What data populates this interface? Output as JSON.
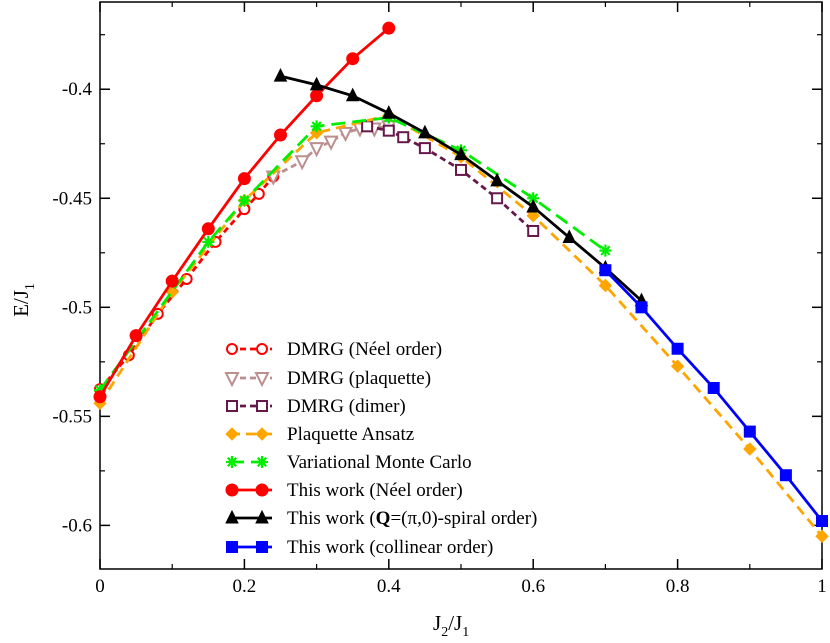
{
  "chart_data": {
    "type": "line",
    "title": "",
    "xlabel": "J2/J1",
    "ylabel": "E/J1",
    "xlim": [
      0,
      1
    ],
    "ylim": [
      -0.62,
      -0.36
    ],
    "x_ticks": [
      {
        "v": 0,
        "label": "0"
      },
      {
        "v": 0.2,
        "label": "0.2"
      },
      {
        "v": 0.4,
        "label": "0.4"
      },
      {
        "v": 0.6,
        "label": "0.6"
      },
      {
        "v": 0.8,
        "label": "0.8"
      },
      {
        "v": 1,
        "label": "1"
      }
    ],
    "y_ticks": [
      {
        "v": -0.4,
        "label": "-0.4"
      },
      {
        "v": -0.45,
        "label": "-0.45"
      },
      {
        "v": -0.5,
        "label": "-0.5"
      },
      {
        "v": -0.55,
        "label": "-0.55"
      },
      {
        "v": -0.6,
        "label": "-0.6"
      }
    ],
    "grid": false,
    "legend_position": "bottom-center",
    "series": [
      {
        "name": "DMRG (Néel order)",
        "color": "#ff0000",
        "marker": "circle-open",
        "dash": "6,4",
        "points": [
          [
            0,
            -0.5375
          ],
          [
            0.04,
            -0.522
          ],
          [
            0.08,
            -0.503
          ],
          [
            0.12,
            -0.487
          ],
          [
            0.16,
            -0.47
          ],
          [
            0.2,
            -0.455
          ],
          [
            0.22,
            -0.448
          ],
          [
            0.24,
            -0.44
          ]
        ]
      },
      {
        "name": "DMRG (plaquette)",
        "color": "#bc8f8f",
        "marker": "triangle-down-open",
        "dash": "6,4",
        "points": [
          [
            0.24,
            -0.44
          ],
          [
            0.28,
            -0.433
          ],
          [
            0.3,
            -0.427
          ],
          [
            0.32,
            -0.424
          ],
          [
            0.34,
            -0.42
          ],
          [
            0.36,
            -0.418
          ],
          [
            0.38,
            -0.418
          ],
          [
            0.4,
            -0.417
          ]
        ]
      },
      {
        "name": "DMRG (dimer)",
        "color": "#67184b",
        "marker": "square-open",
        "dash": "6,4",
        "points": [
          [
            0.37,
            -0.417
          ],
          [
            0.4,
            -0.419
          ],
          [
            0.42,
            -0.422
          ],
          [
            0.45,
            -0.427
          ],
          [
            0.5,
            -0.437
          ],
          [
            0.55,
            -0.45
          ],
          [
            0.6,
            -0.465
          ]
        ]
      },
      {
        "name": "Plaquette Ansatz",
        "color": "#ffa500",
        "marker": "diamond",
        "dash": "10,6",
        "points": [
          [
            0,
            -0.544
          ],
          [
            0.1,
            -0.493
          ],
          [
            0.2,
            -0.451
          ],
          [
            0.3,
            -0.42
          ],
          [
            0.4,
            -0.412
          ],
          [
            0.5,
            -0.431
          ],
          [
            0.6,
            -0.458
          ],
          [
            0.7,
            -0.49
          ],
          [
            0.8,
            -0.527
          ],
          [
            0.9,
            -0.565
          ],
          [
            1.0,
            -0.605
          ]
        ]
      },
      {
        "name": "Variational Monte Carlo",
        "color": "#00ee00",
        "marker": "star",
        "dash": "14,7",
        "points": [
          [
            0,
            -0.538
          ],
          [
            0.15,
            -0.47
          ],
          [
            0.2,
            -0.451
          ],
          [
            0.3,
            -0.417
          ],
          [
            0.4,
            -0.413
          ],
          [
            0.5,
            -0.428
          ],
          [
            0.6,
            -0.45
          ],
          [
            0.7,
            -0.474
          ]
        ]
      },
      {
        "name": "This work (Néel order)",
        "color": "#ff0000",
        "marker": "circle-filled",
        "dash": "",
        "points": [
          [
            0,
            -0.541
          ],
          [
            0.05,
            -0.513
          ],
          [
            0.1,
            -0.488
          ],
          [
            0.15,
            -0.464
          ],
          [
            0.2,
            -0.441
          ],
          [
            0.25,
            -0.421
          ],
          [
            0.3,
            -0.403
          ],
          [
            0.35,
            -0.386
          ],
          [
            0.4,
            -0.372
          ]
        ]
      },
      {
        "name": "This work (Q=(π,0)-spiral order)",
        "color": "#000000",
        "marker": "triangle-up",
        "dash": "",
        "points": [
          [
            0.25,
            -0.394
          ],
          [
            0.3,
            -0.398
          ],
          [
            0.35,
            -0.403
          ],
          [
            0.4,
            -0.411
          ],
          [
            0.45,
            -0.42
          ],
          [
            0.5,
            -0.43
          ],
          [
            0.55,
            -0.442
          ],
          [
            0.6,
            -0.454
          ],
          [
            0.65,
            -0.468
          ],
          [
            0.7,
            -0.482
          ],
          [
            0.75,
            -0.497
          ]
        ]
      },
      {
        "name": "This work (collinear order)",
        "color": "#0000ff",
        "marker": "square-filled",
        "dash": "",
        "points": [
          [
            0.7,
            -0.483
          ],
          [
            0.75,
            -0.5
          ],
          [
            0.8,
            -0.519
          ],
          [
            0.85,
            -0.537
          ],
          [
            0.9,
            -0.557
          ],
          [
            0.95,
            -0.577
          ],
          [
            1.0,
            -0.598
          ]
        ]
      }
    ]
  },
  "legend": [
    "DMRG (Néel order)",
    "DMRG (plaquette)",
    "DMRG (dimer)",
    "Plaquette Ansatz",
    "Variational Monte Carlo",
    "This work (Néel order)",
    "This work (Q=(π,0)-spiral order)",
    "This work (collinear order)"
  ],
  "axes": {
    "ylabel_main": "E/J",
    "ylabel_sub": "1",
    "xlabel_main_a": "J",
    "xlabel_sub_a": "2",
    "xlabel_mid": "/J",
    "xlabel_sub_b": "1"
  },
  "legend_labels": {
    "l0": "DMRG (Néel order)",
    "l1": "DMRG (plaquette)",
    "l2": "DMRG (dimer)",
    "l3": "Plaquette Ansatz",
    "l4": "Variational Monte Carlo",
    "l5": "This work (Néel order)",
    "l6_pre": "This work (",
    "l6_bold": "Q",
    "l6_post": "=(π,0)-spiral order)",
    "l7": "This work (collinear order)"
  }
}
